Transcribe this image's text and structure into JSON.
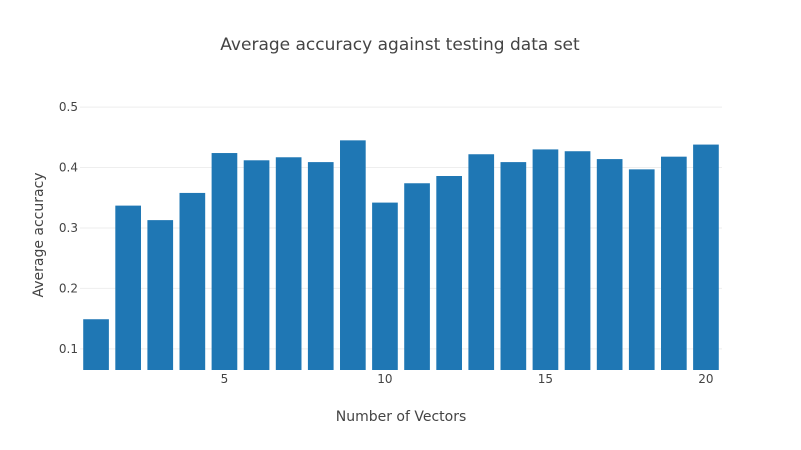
{
  "chart_data": {
    "type": "bar",
    "title": "Average accuracy against testing data set",
    "xlabel": "Number of Vectors",
    "ylabel": "Average accuracy",
    "x": [
      1,
      2,
      3,
      4,
      5,
      6,
      7,
      8,
      9,
      10,
      11,
      12,
      13,
      14,
      15,
      16,
      17,
      18,
      19,
      20
    ],
    "values": [
      0.149,
      0.337,
      0.313,
      0.358,
      0.424,
      0.412,
      0.417,
      0.409,
      0.445,
      0.342,
      0.374,
      0.386,
      0.422,
      0.409,
      0.43,
      0.427,
      0.414,
      0.397,
      0.418,
      0.438
    ],
    "xlim": [
      0.5,
      20.5
    ],
    "ylim": [
      0.065,
      0.525
    ],
    "yticks": [
      0.1,
      0.2,
      0.3,
      0.4,
      0.5
    ],
    "xticks": [
      5,
      10,
      15,
      20
    ],
    "grid": true,
    "bar_color": "#1f77b4"
  }
}
